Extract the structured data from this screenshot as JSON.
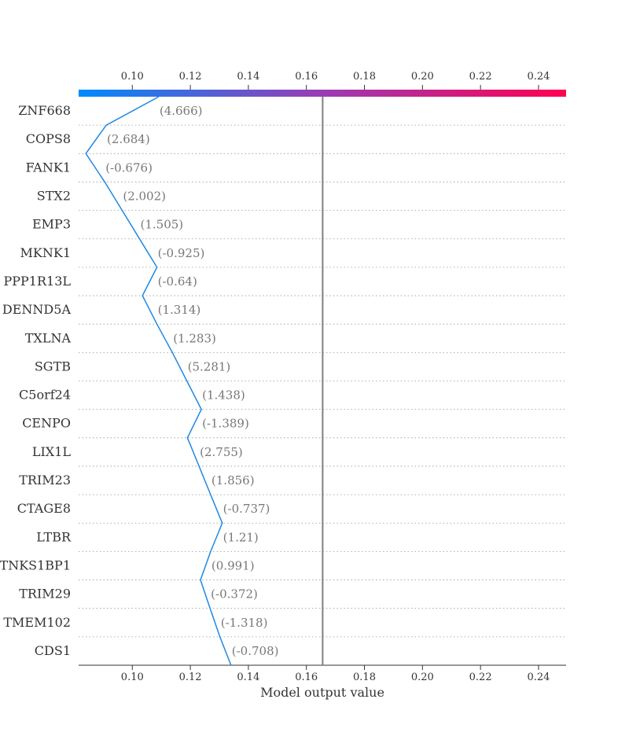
{
  "chart_data": {
    "type": "line",
    "xlabel": "Model output value",
    "x_ticks": [
      0.1,
      0.12,
      0.14,
      0.16,
      0.18,
      0.2,
      0.22,
      0.24
    ],
    "xlim": [
      0.0815,
      0.2495
    ],
    "base_value": 0.1656,
    "colorbar": {
      "start_color": "#008bfb",
      "end_color": "#ff0051"
    },
    "line_color": "#1e88e5",
    "features": [
      {
        "name": "ZNF668",
        "value": "(4.666)",
        "output_low": 0.091,
        "output_high": 0.1091
      },
      {
        "name": "COPS8",
        "value": "(2.684)",
        "output_low": 0.084,
        "output_high": 0.091
      },
      {
        "name": "FANK1",
        "value": "(-0.676)",
        "output_low": 0.084,
        "output_high": 0.0905
      },
      {
        "name": "STX2",
        "value": "(2.002)",
        "output_low": 0.0905,
        "output_high": 0.0965
      },
      {
        "name": "EMP3",
        "value": "(1.505)",
        "output_low": 0.0965,
        "output_high": 0.1025
      },
      {
        "name": "MKNK1",
        "value": "(-0.925)",
        "output_low": 0.1025,
        "output_high": 0.1085
      },
      {
        "name": "PPP1R13L",
        "value": "(-0.64)",
        "output_low": 0.1035,
        "output_high": 0.1085
      },
      {
        "name": "DENND5A",
        "value": "(1.314)",
        "output_low": 0.1035,
        "output_high": 0.1085
      },
      {
        "name": "TXLNA",
        "value": "(1.283)",
        "output_low": 0.1085,
        "output_high": 0.1138
      },
      {
        "name": "SGTB",
        "value": "(5.281)",
        "output_low": 0.1138,
        "output_high": 0.1188
      },
      {
        "name": "C5orf24",
        "value": "(1.438)",
        "output_low": 0.1188,
        "output_high": 0.1238
      },
      {
        "name": "CENPO",
        "value": "(-1.389)",
        "output_low": 0.119,
        "output_high": 0.1238
      },
      {
        "name": "LIX1L",
        "value": "(2.755)",
        "output_low": 0.119,
        "output_high": 0.123
      },
      {
        "name": "TRIM23",
        "value": "(1.856)",
        "output_low": 0.123,
        "output_high": 0.127
      },
      {
        "name": "CTAGE8",
        "value": "(-0.737)",
        "output_low": 0.127,
        "output_high": 0.131
      },
      {
        "name": "LTBR",
        "value": "(1.21)",
        "output_low": 0.127,
        "output_high": 0.131
      },
      {
        "name": "TNKS1BP1",
        "value": "(0.991)",
        "output_low": 0.1235,
        "output_high": 0.127
      },
      {
        "name": "TRIM29",
        "value": "(-0.372)",
        "output_low": 0.1235,
        "output_high": 0.1268
      },
      {
        "name": "TMEM102",
        "value": "(-1.318)",
        "output_low": 0.1268,
        "output_high": 0.1302
      },
      {
        "name": "CDS1",
        "value": "(-0.708)",
        "output_low": 0.1302,
        "output_high": 0.134
      }
    ],
    "line_points": [
      0.1091,
      0.091,
      0.084,
      0.0905,
      0.0965,
      0.1025,
      0.1085,
      0.1035,
      0.1085,
      0.1138,
      0.1188,
      0.1238,
      0.119,
      0.123,
      0.127,
      0.131,
      0.127,
      0.1235,
      0.1268,
      0.1302,
      0.134
    ]
  }
}
